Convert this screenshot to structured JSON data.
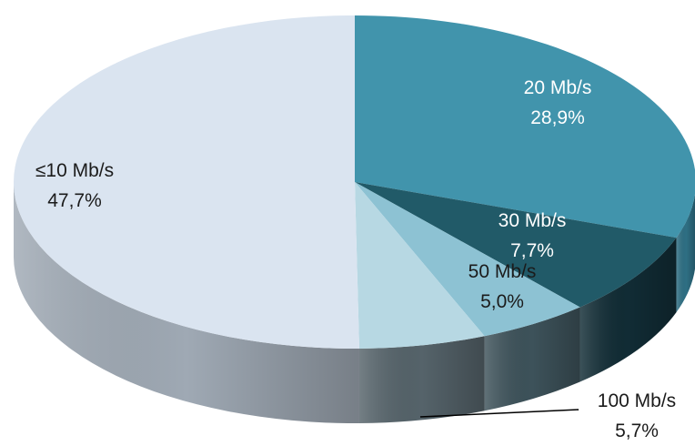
{
  "chart_data": {
    "type": "pie",
    "style": "3d",
    "title": "",
    "legend": "none",
    "slices": [
      {
        "label": "20 Mb/s",
        "percent_label": "28,9%",
        "value": 28.9,
        "top_color": "#4194AC",
        "side_color": "#2E6F84",
        "text_color": "#FFFFFF"
      },
      {
        "label": "30 Mb/s",
        "percent_label": "7,7%",
        "value": 7.7,
        "top_color": "#215A68",
        "side_color": "#112C35",
        "text_color": "#FFFFFF"
      },
      {
        "label": "50 Mb/s",
        "percent_label": "5,0%",
        "value": 5.0,
        "top_color": "#8DC2D3",
        "side_color": "#3D525A",
        "text_color": "#1B1B1B"
      },
      {
        "label": "100 Mb/s",
        "percent_label": "5,7%",
        "value": 5.7,
        "top_color": "#B7D8E3",
        "side_color": "#55636A",
        "text_color": "#1B1B1B"
      },
      {
        "label": "≤10 Mb/s",
        "percent_label": "47,7%",
        "value": 47.7,
        "top_color": "#DAE4F0",
        "side_color": "#9FA9B4",
        "text_color": "#1B1B1B"
      }
    ]
  }
}
